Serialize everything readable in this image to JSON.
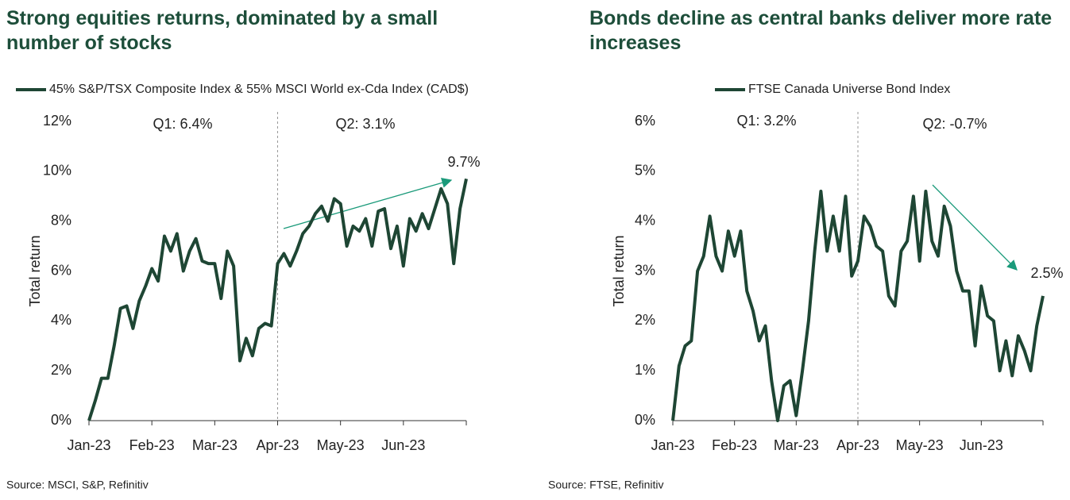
{
  "chart_data": [
    {
      "type": "line",
      "title": "Strong equities returns, dominated by a small number of stocks",
      "y_label": "Total return",
      "source": "Source: MSCI, S&P, Refinitiv",
      "annotations": [
        "Q1: 6.4%",
        "Q2: 3.1%",
        "9.7%"
      ],
      "categories": [
        "Jan-23",
        null,
        null,
        null,
        null,
        null,
        null,
        null,
        null,
        null,
        "Feb-23",
        null,
        null,
        null,
        null,
        null,
        null,
        null,
        null,
        null,
        "Mar-23",
        null,
        null,
        null,
        null,
        null,
        null,
        null,
        null,
        null,
        "Apr-23",
        null,
        null,
        null,
        null,
        null,
        null,
        null,
        null,
        null,
        "May-23",
        null,
        null,
        null,
        null,
        null,
        null,
        null,
        null,
        null,
        "Jun-23",
        null,
        null,
        null,
        null,
        null,
        null,
        null,
        null,
        null,
        null
      ],
      "series": [
        {
          "name": "45% S&P/TSX Composite Index & 55% MSCI World ex-Cda Index (CAD$)",
          "color": "#1e4634",
          "values": [
            0,
            0.8,
            1.7,
            1.7,
            3.0,
            4.5,
            4.6,
            3.7,
            4.8,
            5.4,
            6.1,
            5.6,
            7.4,
            6.8,
            7.5,
            6.0,
            6.8,
            7.3,
            6.4,
            6.3,
            6.3,
            4.9,
            6.8,
            6.2,
            2.4,
            3.3,
            2.6,
            3.7,
            3.9,
            3.8,
            6.3,
            6.7,
            6.2,
            6.8,
            7.5,
            7.8,
            8.3,
            8.6,
            8.0,
            8.9,
            8.7,
            7.0,
            7.8,
            7.6,
            8.1,
            7.0,
            8.4,
            8.5,
            6.9,
            7.8,
            6.2,
            8.1,
            7.6,
            8.3,
            7.7,
            8.5,
            9.3,
            8.7,
            6.3,
            8.5,
            9.7
          ]
        }
      ],
      "ylim": [
        0,
        12
      ],
      "yticks": [
        {
          "value": 0,
          "label": "0%"
        },
        {
          "value": 2,
          "label": "2%"
        },
        {
          "value": 4,
          "label": "4%"
        },
        {
          "value": 6,
          "label": "6%"
        },
        {
          "value": 8,
          "label": "8%"
        },
        {
          "value": 10,
          "label": "10%"
        },
        {
          "value": 12,
          "label": "12%"
        }
      ]
    },
    {
      "type": "line",
      "title": "Bonds decline as central banks deliver more rate increases",
      "y_label": "Total return",
      "source": "Source: FTSE, Refinitiv",
      "annotations": [
        "Q1: 3.2%",
        "Q2: -0.7%",
        "2.5%"
      ],
      "categories": [
        "Jan-23",
        null,
        null,
        null,
        null,
        null,
        null,
        null,
        null,
        null,
        "Feb-23",
        null,
        null,
        null,
        null,
        null,
        null,
        null,
        null,
        null,
        "Mar-23",
        null,
        null,
        null,
        null,
        null,
        null,
        null,
        null,
        null,
        "Apr-23",
        null,
        null,
        null,
        null,
        null,
        null,
        null,
        null,
        null,
        "May-23",
        null,
        null,
        null,
        null,
        null,
        null,
        null,
        null,
        null,
        "Jun-23",
        null,
        null,
        null,
        null,
        null,
        null,
        null,
        null,
        null,
        null
      ],
      "series": [
        {
          "name": "FTSE Canada Universe Bond Index",
          "color": "#1e4634",
          "values": [
            0,
            1.1,
            1.5,
            1.6,
            3.0,
            3.3,
            4.1,
            3.3,
            3.0,
            3.8,
            3.3,
            3.8,
            2.6,
            2.2,
            1.6,
            1.9,
            0.8,
            0.0,
            0.7,
            0.8,
            0.1,
            1.0,
            2.0,
            3.4,
            4.6,
            3.4,
            4.1,
            3.4,
            4.5,
            2.9,
            3.2,
            4.1,
            3.9,
            3.5,
            3.4,
            2.5,
            2.3,
            3.4,
            3.6,
            4.5,
            3.2,
            4.6,
            3.6,
            3.3,
            4.3,
            3.9,
            3.0,
            2.6,
            2.6,
            1.5,
            2.7,
            2.1,
            2.0,
            1.0,
            1.6,
            0.9,
            1.7,
            1.4,
            1.0,
            1.9,
            2.5
          ]
        }
      ],
      "ylim": [
        0,
        6
      ],
      "yticks": [
        {
          "value": 0,
          "label": "0%"
        },
        {
          "value": 1,
          "label": "1%"
        },
        {
          "value": 2,
          "label": "2%"
        },
        {
          "value": 3,
          "label": "3%"
        },
        {
          "value": 4,
          "label": "4%"
        },
        {
          "value": 5,
          "label": "5%"
        },
        {
          "value": 6,
          "label": "6%"
        }
      ]
    }
  ]
}
